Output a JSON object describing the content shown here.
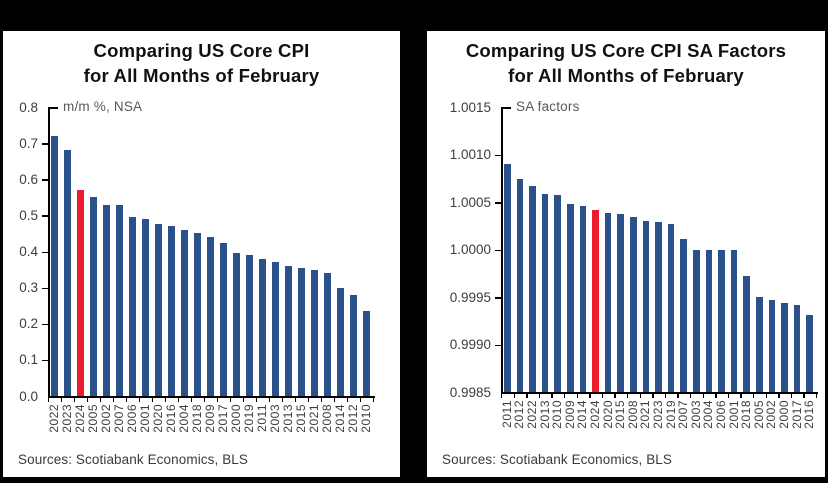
{
  "frame_color": "#000000",
  "panels": [
    {
      "title_line1": "Comparing US Core CPI",
      "title_line2": "for All Months of February",
      "unit_label": "m/m %, NSA",
      "sources": "Sources: Scotiabank Economics, BLS"
    },
    {
      "title_line1": "Comparing US Core CPI SA Factors",
      "title_line2": "for All Months of February",
      "unit_label": "SA factors",
      "sources": "Sources: Scotiabank Economics, BLS"
    }
  ],
  "chart_data": [
    {
      "type": "bar",
      "title": "Comparing US Core CPI for All Months of February",
      "ylabel": "m/m %, NSA",
      "xlabel": "",
      "categories": [
        "2022",
        "2023",
        "2024",
        "2005",
        "2002",
        "2007",
        "2006",
        "2001",
        "2020",
        "2016",
        "2004",
        "2018",
        "2009",
        "2017",
        "2000",
        "2019",
        "2011",
        "2003",
        "2013",
        "2015",
        "2021",
        "2008",
        "2014",
        "2012",
        "2010"
      ],
      "values": [
        0.72,
        0.68,
        0.57,
        0.55,
        0.53,
        0.53,
        0.495,
        0.49,
        0.475,
        0.47,
        0.46,
        0.45,
        0.44,
        0.425,
        0.395,
        0.39,
        0.38,
        0.37,
        0.36,
        0.355,
        0.35,
        0.34,
        0.3,
        0.28,
        0.235
      ],
      "highlight_category": "2024",
      "bar_color": "#2A5189",
      "highlight_color": "#EC1B2D",
      "ylim": [
        0.0,
        0.8
      ],
      "yticks": [
        0.0,
        0.1,
        0.2,
        0.3,
        0.4,
        0.5,
        0.6,
        0.7,
        0.8
      ],
      "ytick_decimals": 1,
      "grid": false,
      "legend": "none",
      "sorted": "descending"
    },
    {
      "type": "bar",
      "title": "Comparing US Core CPI SA Factors for All Months of February",
      "ylabel": "SA factors",
      "xlabel": "",
      "categories": [
        "2011",
        "2012",
        "2022",
        "2013",
        "2010",
        "2009",
        "2014",
        "2024",
        "2020",
        "2015",
        "2008",
        "2021",
        "2023",
        "2019",
        "2007",
        "2003",
        "2004",
        "2006",
        "2001",
        "2018",
        "2005",
        "2002",
        "2000",
        "2017",
        "2016"
      ],
      "values": [
        1.0009,
        1.00074,
        1.00067,
        1.00058,
        1.00057,
        1.00048,
        1.00046,
        1.00042,
        1.00038,
        1.00037,
        1.00034,
        1.0003,
        1.00029,
        1.00027,
        1.00011,
        1.0,
        1.0,
        1.0,
        1.0,
        0.99972,
        0.9995,
        0.99947,
        0.99944,
        0.99942,
        0.99931
      ],
      "highlight_category": "2024",
      "bar_color": "#2A5189",
      "highlight_color": "#EC1B2D",
      "ylim": [
        0.9985,
        1.0015
      ],
      "yticks": [
        0.9985,
        0.999,
        0.9995,
        1.0,
        1.0005,
        1.001,
        1.0015
      ],
      "ytick_decimals": 4,
      "grid": false,
      "legend": "none",
      "sorted": "descending"
    }
  ]
}
